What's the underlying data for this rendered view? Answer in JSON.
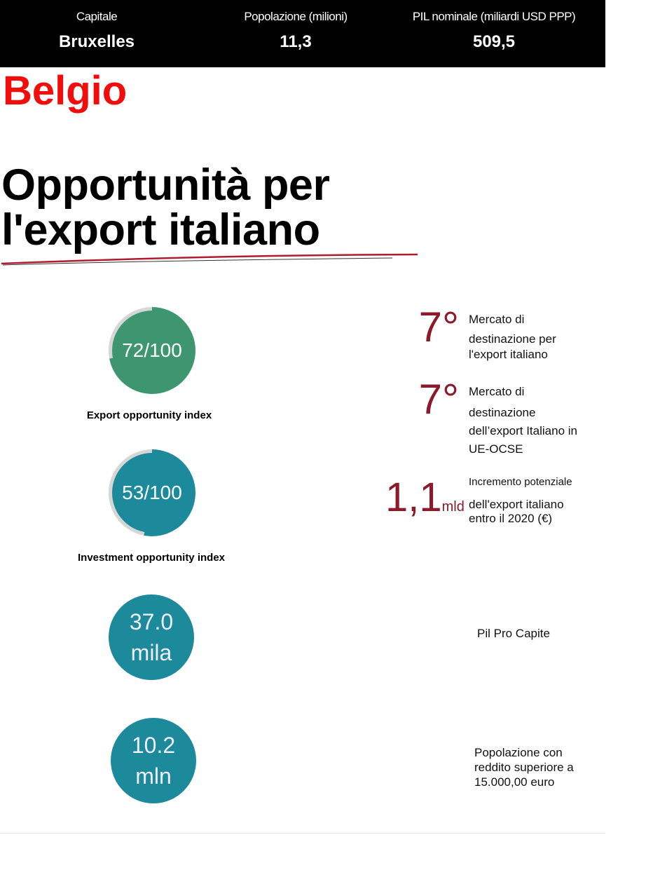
{
  "header": {
    "columns": [
      {
        "label": "Capitale",
        "value": "Bruxelles"
      },
      {
        "label": "Popolazione (milioni)",
        "value": "11,3"
      },
      {
        "label": "PIL nominale (miliardi USD PPP)",
        "value": "509,5"
      }
    ]
  },
  "country": "Belgio",
  "title": "Opportunità per l'export italiano",
  "colors": {
    "country": "#f20d0d",
    "accent": "#8b1a2b",
    "green": "#3d9670",
    "teal": "#1d8a9c"
  },
  "indices": [
    {
      "text": "72/100",
      "value": 72,
      "max": 100,
      "label": "Export opportunity index"
    },
    {
      "text": "53/100",
      "value": 53,
      "max": 100,
      "label": "Investment opportunity index"
    }
  ],
  "stats": [
    {
      "value": "37.0",
      "unit": "mila",
      "label": "Pil Pro Capite"
    },
    {
      "value": "10.2",
      "unit": "mln",
      "label": "Popolazione con reddito superiore a 15.000,00 euro"
    }
  ],
  "rankings": [
    {
      "value": "7°",
      "label_line1": "Mercato di",
      "label_rest": "destinazione per l'export italiano"
    },
    {
      "value": "7°",
      "label_line1": "Mercato di",
      "label_rest": "destinazione dell’export Italiano in UE-OCSE"
    },
    {
      "value": "1,1",
      "unit": "mld",
      "label_line1": "Incremento potenziale",
      "label_rest": "dell'export italiano entro il 2020 (€)"
    }
  ]
}
